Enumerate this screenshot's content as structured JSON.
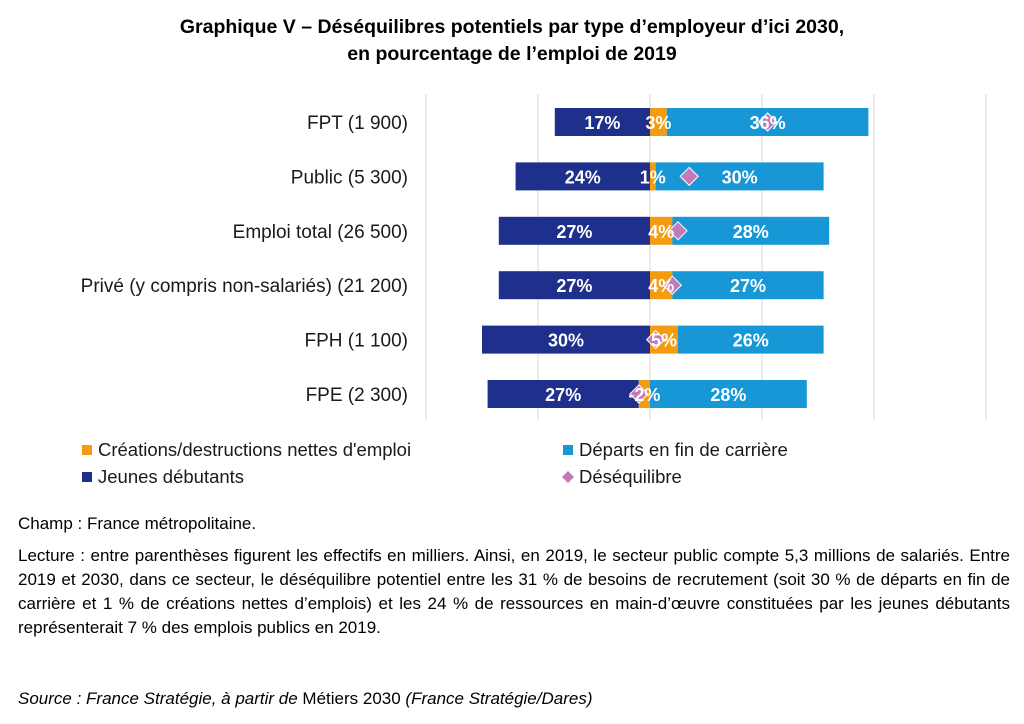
{
  "title": {
    "line1": "Graphique V – Déséquilibres potentiels par type d’employeur d’ici 2030,",
    "line2": "en pourcentage de l’emploi de 2019"
  },
  "colors": {
    "jeunes": "#1e2f8c",
    "creations": "#f39c12",
    "departs": "#1797d6",
    "desequilibre": "#c27bb8",
    "grid": "#d9d9d9"
  },
  "chart_data": {
    "type": "bar",
    "orientation": "horizontal",
    "stacked": "diverging",
    "title": "Graphique V – Déséquilibres potentiels par type d’employeur d’ici 2030, en pourcentage de l’emploi de 2019",
    "categories": [
      "FPT (1 900)",
      "Public (5 300)",
      "Emploi total (26 500)",
      "Privé (y compris non-salariés) (21 200)",
      "FPH (1 100)",
      "FPE (2 300)"
    ],
    "xlim": [
      -40,
      60
    ],
    "grid": true,
    "legend_position": "bottom",
    "series": [
      {
        "name": "Jeunes débutants",
        "values": [
          -17,
          -24,
          -27,
          -27,
          -30,
          -27
        ],
        "labels": [
          "17%",
          "24%",
          "27%",
          "27%",
          "30%",
          "27%"
        ]
      },
      {
        "name": "Créations/destructions nettes d'emploi",
        "values": [
          3,
          1,
          4,
          4,
          5,
          -2
        ],
        "labels": [
          "3%",
          "1%",
          "4%",
          "4%",
          "5%",
          "-2%"
        ]
      },
      {
        "name": "Départs en fin de carrière",
        "values": [
          36,
          30,
          28,
          27,
          26,
          28
        ],
        "labels": [
          "36%",
          "30%",
          "28%",
          "27%",
          "26%",
          "28%"
        ]
      },
      {
        "name": "Déséquilibre",
        "values": [
          21,
          7,
          5,
          4,
          1,
          -2
        ]
      }
    ]
  },
  "notes": {
    "champ": "Champ : France métropolitaine.",
    "lecture": "Lecture : entre parenthèses figurent les effectifs en milliers. Ainsi, en 2019, le secteur public compte 5,3 millions de salariés. Entre 2019 et 2030, dans ce secteur, le déséquilibre potentiel entre les 31 % de besoins de recrutement (soit 30 % de départs en fin de carrière et 1 % de créations nettes d’emplois) et les 24 % de ressources en main-d’œuvre constituées par les jeunes débutants représenterait 7 % des emplois publics en 2019.",
    "source_prefix": "Source : France Stratégie, à partir de ",
    "source_work": "Métiers 2030",
    "source_suffix": " (France Stratégie/Dares)"
  }
}
